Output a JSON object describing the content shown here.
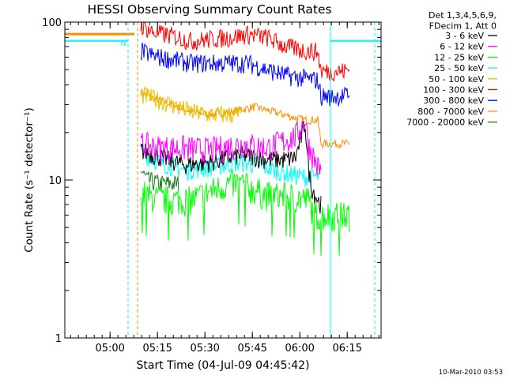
{
  "chart_data": {
    "type": "line",
    "title": "HESSI Observing Summary Count Rates",
    "xlabel": "Start Time (04-Jul-09 04:45:42)",
    "ylabel": "Count Rate (s⁻¹ detector⁻¹)",
    "x_unit": "minutes after 04:45:42",
    "xlim": [
      0,
      100
    ],
    "ylim": [
      1,
      100
    ],
    "yscale": "log",
    "x_ticks": [
      {
        "x": 14.3,
        "label": "05:00"
      },
      {
        "x": 29.3,
        "label": "05:15"
      },
      {
        "x": 44.3,
        "label": "05:30"
      },
      {
        "x": 59.3,
        "label": "05:45"
      },
      {
        "x": 74.3,
        "label": "06:00"
      },
      {
        "x": 89.3,
        "label": "06:15"
      }
    ],
    "y_ticks": [
      {
        "y": 1,
        "label": "1"
      },
      {
        "y": 10,
        "label": "10"
      },
      {
        "y": 100,
        "label": "100"
      }
    ],
    "legend": {
      "placement": "right",
      "header": [
        "Det 1,3,4,5,6,9,",
        "FDecim 1, Att 0"
      ]
    },
    "series": [
      {
        "name": "3 - 6 keV",
        "color": "#000000",
        "points": [
          [
            24,
            15.5
          ],
          [
            30,
            14
          ],
          [
            38,
            12.5
          ],
          [
            46,
            13
          ],
          [
            56,
            14.5
          ],
          [
            64,
            13.5
          ],
          [
            70,
            13.5
          ],
          [
            73,
            14
          ],
          [
            76,
            23
          ],
          [
            77,
            12
          ],
          [
            78,
            9
          ],
          [
            80,
            7.5
          ],
          [
            81,
            7
          ]
        ]
      },
      {
        "name": "6 - 12 keV",
        "color": "#ff00ff",
        "points": [
          [
            24,
            17
          ],
          [
            30,
            16
          ],
          [
            38,
            16
          ],
          [
            46,
            15.5
          ],
          [
            56,
            17
          ],
          [
            64,
            16
          ],
          [
            70,
            18
          ],
          [
            73,
            19
          ],
          [
            76,
            24
          ],
          [
            77,
            17
          ],
          [
            80,
            12
          ],
          [
            81,
            11.5
          ]
        ]
      },
      {
        "name": "12 - 25 keV",
        "color": "#00ff00",
        "points": [
          [
            24,
            8.5
          ],
          [
            26,
            8
          ],
          [
            30,
            7.5
          ],
          [
            34,
            7.5
          ],
          [
            40,
            7.5
          ],
          [
            46,
            8.5
          ],
          [
            52,
            9.5
          ],
          [
            56,
            9.5
          ],
          [
            58,
            9
          ],
          [
            64,
            8
          ],
          [
            70,
            8
          ],
          [
            77,
            7.5
          ],
          [
            79,
            6
          ],
          [
            86,
            6
          ],
          [
            90,
            6
          ]
        ]
      },
      {
        "name": "25 - 50 keV",
        "color": "#00ffff",
        "points": [
          [
            24,
            15
          ],
          [
            30,
            13
          ],
          [
            38,
            11.5
          ],
          [
            46,
            12
          ],
          [
            56,
            13
          ],
          [
            64,
            12
          ],
          [
            70,
            11
          ],
          [
            76,
            10.5
          ],
          [
            81,
            10.5
          ]
        ]
      },
      {
        "name": "50 - 100 keV",
        "color": "#e6c200",
        "points": [
          [
            24,
            35
          ],
          [
            28,
            33
          ],
          [
            34,
            30
          ],
          [
            40,
            27
          ],
          [
            46,
            26
          ],
          [
            52,
            26
          ],
          [
            56,
            26
          ]
        ]
      },
      {
        "name": "100 - 300 keV",
        "color": "#ff0000",
        "points": [
          [
            24,
            96
          ],
          [
            28,
            86
          ],
          [
            34,
            82
          ],
          [
            40,
            76
          ],
          [
            46,
            78
          ],
          [
            52,
            80
          ],
          [
            58,
            84
          ],
          [
            64,
            80
          ],
          [
            70,
            70
          ],
          [
            76,
            66
          ],
          [
            80,
            65
          ],
          [
            81,
            49
          ],
          [
            88,
            49
          ],
          [
            90,
            50
          ]
        ]
      },
      {
        "name": "300 - 800 keV",
        "color": "#0000ff",
        "points": [
          [
            24,
            66
          ],
          [
            28,
            61
          ],
          [
            34,
            58
          ],
          [
            40,
            55
          ],
          [
            46,
            55
          ],
          [
            52,
            55
          ],
          [
            58,
            55
          ],
          [
            64,
            50
          ],
          [
            70,
            46
          ],
          [
            76,
            44
          ],
          [
            80,
            43
          ],
          [
            81,
            34
          ],
          [
            88,
            34
          ],
          [
            90,
            35
          ]
        ]
      },
      {
        "name": "800 - 7000 keV",
        "color": "#ff8c00",
        "points": [
          [
            -10,
            84
          ],
          [
            22,
            84
          ],
          [
            56,
            28
          ],
          [
            60,
            29
          ],
          [
            66,
            27
          ],
          [
            72,
            25
          ],
          [
            76,
            24
          ],
          [
            80,
            24
          ],
          [
            81,
            17
          ],
          [
            88,
            17
          ],
          [
            90,
            17
          ]
        ]
      },
      {
        "name": "7000 - 20000 keV",
        "color": "#1a7a1a",
        "points": [
          [
            24,
            11.5
          ],
          [
            26,
            10
          ],
          [
            30,
            9.5
          ],
          [
            36,
            9.5
          ]
        ]
      }
    ],
    "flag_level": {
      "color": "#00ffff",
      "y": 76,
      "spans": [
        [
          -10,
          20
        ],
        [
          84,
          100
        ]
      ],
      "label": "N"
    },
    "vlines": [
      {
        "x": 20,
        "color": "#00ffff",
        "style": "dashed"
      },
      {
        "x": 23,
        "color": "#ff8c00",
        "style": "dashed"
      },
      {
        "x": 84,
        "color": "#00ffff",
        "style": "solid"
      },
      {
        "x": 98,
        "color": "#00ffff",
        "style": "dashed"
      }
    ]
  },
  "footer": {
    "date": "10-Mar-2010 03:53"
  }
}
